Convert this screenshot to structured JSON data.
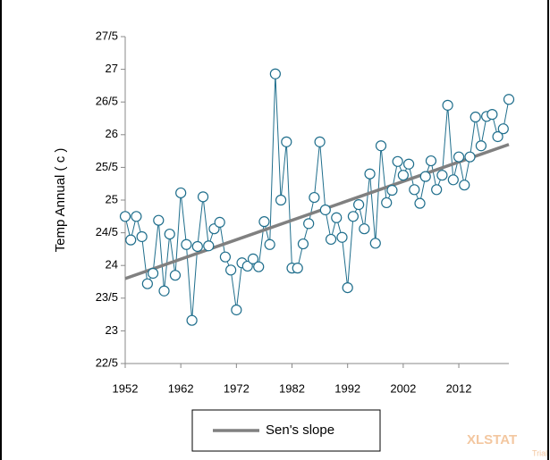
{
  "chart_data": {
    "type": "line",
    "y_label": "Temp Annual ( c )",
    "x": [
      1952,
      1953,
      1954,
      1955,
      1956,
      1957,
      1958,
      1959,
      1960,
      1961,
      1962,
      1963,
      1964,
      1965,
      1966,
      1967,
      1968,
      1969,
      1970,
      1971,
      1972,
      1973,
      1974,
      1975,
      1976,
      1977,
      1978,
      1979,
      1980,
      1981,
      1982,
      1983,
      1984,
      1985,
      1986,
      1987,
      1988,
      1989,
      1990,
      1991,
      1992,
      1993,
      1994,
      1995,
      1996,
      1997,
      1998,
      1999,
      2000,
      2001,
      2002,
      2003,
      2004,
      2005,
      2006,
      2007,
      2008,
      2009,
      2010,
      2011,
      2012,
      2013,
      2014,
      2015,
      2016,
      2017,
      2018,
      2019,
      2020,
      2021
    ],
    "series": [
      {
        "color": "#1f6e8c",
        "values": [
          24.75,
          24.39,
          24.75,
          24.44,
          23.72,
          23.88,
          24.69,
          23.61,
          24.48,
          23.85,
          25.11,
          24.32,
          23.16,
          24.29,
          25.05,
          24.3,
          24.56,
          24.66,
          24.13,
          23.93,
          23.32,
          24.04,
          23.99,
          24.1,
          23.98,
          24.67,
          24.32,
          26.93,
          25.0,
          25.89,
          23.96,
          23.96,
          24.33,
          24.64,
          25.04,
          25.89,
          24.85,
          24.4,
          24.73,
          24.43,
          23.66,
          24.75,
          24.93,
          24.56,
          25.4,
          24.34,
          25.83,
          24.96,
          25.15,
          25.59,
          25.38,
          25.55,
          25.16,
          24.95,
          25.36,
          25.6,
          25.16,
          25.38,
          26.45,
          25.31,
          25.66,
          25.23,
          25.66,
          26.27,
          25.83,
          26.28,
          26.31,
          25.97,
          26.09,
          26.54
        ]
      }
    ],
    "trend": {
      "name": "Sen's slope",
      "color": "#808080",
      "x": [
        1952,
        2021
      ],
      "values": [
        23.8,
        25.85
      ]
    },
    "xlim": [
      1952,
      2021
    ],
    "xticks": [
      1952,
      1962,
      1972,
      1982,
      1992,
      2002,
      2012
    ],
    "ylim": [
      22.5,
      27.5
    ],
    "yticks": [
      {
        "value": 22.5,
        "label": "22/5"
      },
      23,
      {
        "value": 23.5,
        "label": "23/5"
      },
      24,
      {
        "value": 24.5,
        "label": "24/5"
      },
      25,
      {
        "value": 25.5,
        "label": "25/5"
      },
      26,
      {
        "value": 26.5,
        "label": "26/5"
      },
      27,
      {
        "value": 27.5,
        "label": "27/5"
      }
    ],
    "watermark": "XLSTAT",
    "watermark_sub": "Trial"
  }
}
